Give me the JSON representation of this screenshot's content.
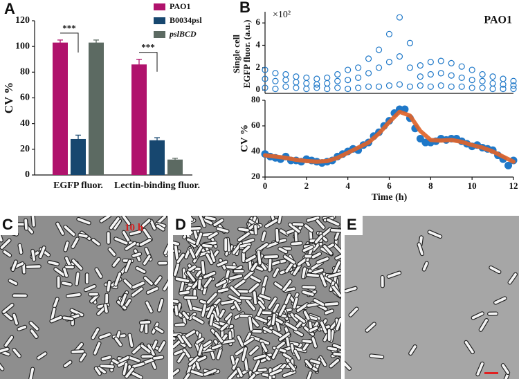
{
  "chart_data": [
    {
      "type": "bar",
      "panel_label": "A",
      "ylabel": "CV  %",
      "categories": [
        "EGFP fluor.",
        "Lectin-binding fluor."
      ],
      "series": [
        {
          "name": "PAO1",
          "color": "#b0126c",
          "values": [
            103,
            86
          ],
          "errors": [
            2,
            4
          ]
        },
        {
          "name": "B0034psl",
          "color": "#17476f",
          "values": [
            28,
            27
          ],
          "errors": [
            3,
            2
          ]
        },
        {
          "name": "pslBCD",
          "color": "#5c6a62",
          "values": [
            103,
            12
          ],
          "errors": [
            2,
            1
          ]
        }
      ],
      "annotations": [
        "***",
        "***"
      ],
      "ylim": [
        0,
        120
      ],
      "yticks": [
        0,
        20,
        40,
        60,
        80,
        100,
        120
      ]
    },
    {
      "type": "scatter",
      "panel_label": "B",
      "ylabel": [
        "Single cell",
        "EGFP fluor. (a.u.)"
      ],
      "annotations": [
        "×10²",
        "PAO1"
      ],
      "color": "#1f78c8",
      "x": [
        0,
        0,
        0,
        0.5,
        0.5,
        0.5,
        1,
        1,
        1,
        1.5,
        1.5,
        1.5,
        2,
        2,
        2,
        2.5,
        2.5,
        2.5,
        3,
        3,
        3,
        3.5,
        3.5,
        3.5,
        4,
        4,
        4,
        4.5,
        4.5,
        4.5,
        5,
        5,
        5,
        5.5,
        5.5,
        5.5,
        6,
        6,
        6,
        6.5,
        6.5,
        6.5,
        7,
        7,
        7,
        7.5,
        7.5,
        7.5,
        8,
        8,
        8,
        8.5,
        8.5,
        8.5,
        9,
        9,
        9,
        9.5,
        9.5,
        9.5,
        10,
        10,
        10,
        10.5,
        10.5,
        10.5,
        11,
        11,
        11,
        11.5,
        11.5,
        11.5,
        12,
        12,
        12
      ],
      "values": [
        0.2,
        1.0,
        1.8,
        0.1,
        0.8,
        1.5,
        0.3,
        0.9,
        1.4,
        0.2,
        0.7,
        1.2,
        0.1,
        0.6,
        1.1,
        0.2,
        0.5,
        1.0,
        0.1,
        0.6,
        1.1,
        0.2,
        0.8,
        1.4,
        0.1,
        0.9,
        1.8,
        0.2,
        1.1,
        2.0,
        0.3,
        1.5,
        2.8,
        0.3,
        2.0,
        3.6,
        0.4,
        2.5,
        5.0,
        0.5,
        3.0,
        6.5,
        0.3,
        2.0,
        4.2,
        0.4,
        1.2,
        2.2,
        0.3,
        1.4,
        2.5,
        0.4,
        1.5,
        2.6,
        0.3,
        1.3,
        2.4,
        0.3,
        1.1,
        2.1,
        0.2,
        0.9,
        1.8,
        0.2,
        0.8,
        1.4,
        0.1,
        0.6,
        1.2,
        0.1,
        0.5,
        1.0,
        0.1,
        0.4,
        0.8
      ],
      "xlim": [
        0,
        12
      ],
      "ylim": [
        -0.3,
        7
      ],
      "yticks": [
        0,
        2,
        4,
        6
      ]
    },
    {
      "type": "combo",
      "ylabel": "CV %",
      "xlabel": "Time (h)",
      "series": [
        {
          "kind": "scatter",
          "color": "#1f78c8",
          "x": [
            0,
            0.25,
            0.5,
            0.75,
            1,
            1.25,
            1.5,
            1.75,
            2,
            2.25,
            2.5,
            2.75,
            3,
            3.25,
            3.5,
            3.75,
            4,
            4.25,
            4.5,
            4.75,
            5,
            5.25,
            5.5,
            5.75,
            6,
            6.25,
            6.5,
            6.75,
            7,
            7.25,
            7.5,
            7.75,
            8,
            8.25,
            8.5,
            8.75,
            9,
            9.25,
            9.5,
            9.75,
            10,
            10.25,
            10.5,
            10.75,
            11,
            11.25,
            11.5,
            11.75,
            12
          ],
          "values": [
            38,
            36,
            35,
            34,
            36,
            33,
            33,
            32,
            34,
            33,
            32,
            31,
            32,
            33,
            36,
            38,
            40,
            42,
            41,
            45,
            47,
            52,
            55,
            60,
            64,
            70,
            73,
            73,
            66,
            58,
            50,
            47,
            47,
            48,
            50,
            49,
            50,
            50,
            48,
            46,
            44,
            45,
            43,
            42,
            41,
            37,
            34,
            29,
            33
          ]
        },
        {
          "kind": "line",
          "color": "#e0642a",
          "x": [
            0,
            0.5,
            1,
            1.5,
            2,
            2.5,
            3,
            3.5,
            4,
            4.5,
            5,
            5.5,
            6,
            6.5,
            7,
            7.5,
            8,
            8.5,
            9,
            9.5,
            10,
            10.5,
            11,
            11.5,
            12
          ],
          "values": [
            37,
            36,
            35,
            33.5,
            32.5,
            32,
            32.5,
            35,
            39,
            43,
            47,
            54,
            63,
            71,
            68,
            56,
            49,
            48.5,
            49,
            47.5,
            45,
            43,
            40,
            36,
            32
          ]
        }
      ],
      "xlim": [
        0,
        12
      ],
      "xticks": [
        0,
        2,
        4,
        6,
        8,
        10,
        12
      ],
      "ylim": [
        20,
        80
      ],
      "yticks": [
        20,
        40,
        60,
        80
      ]
    }
  ],
  "images": [
    {
      "label": "C",
      "caption": "10 h"
    },
    {
      "label": "D"
    },
    {
      "label": "E"
    }
  ]
}
